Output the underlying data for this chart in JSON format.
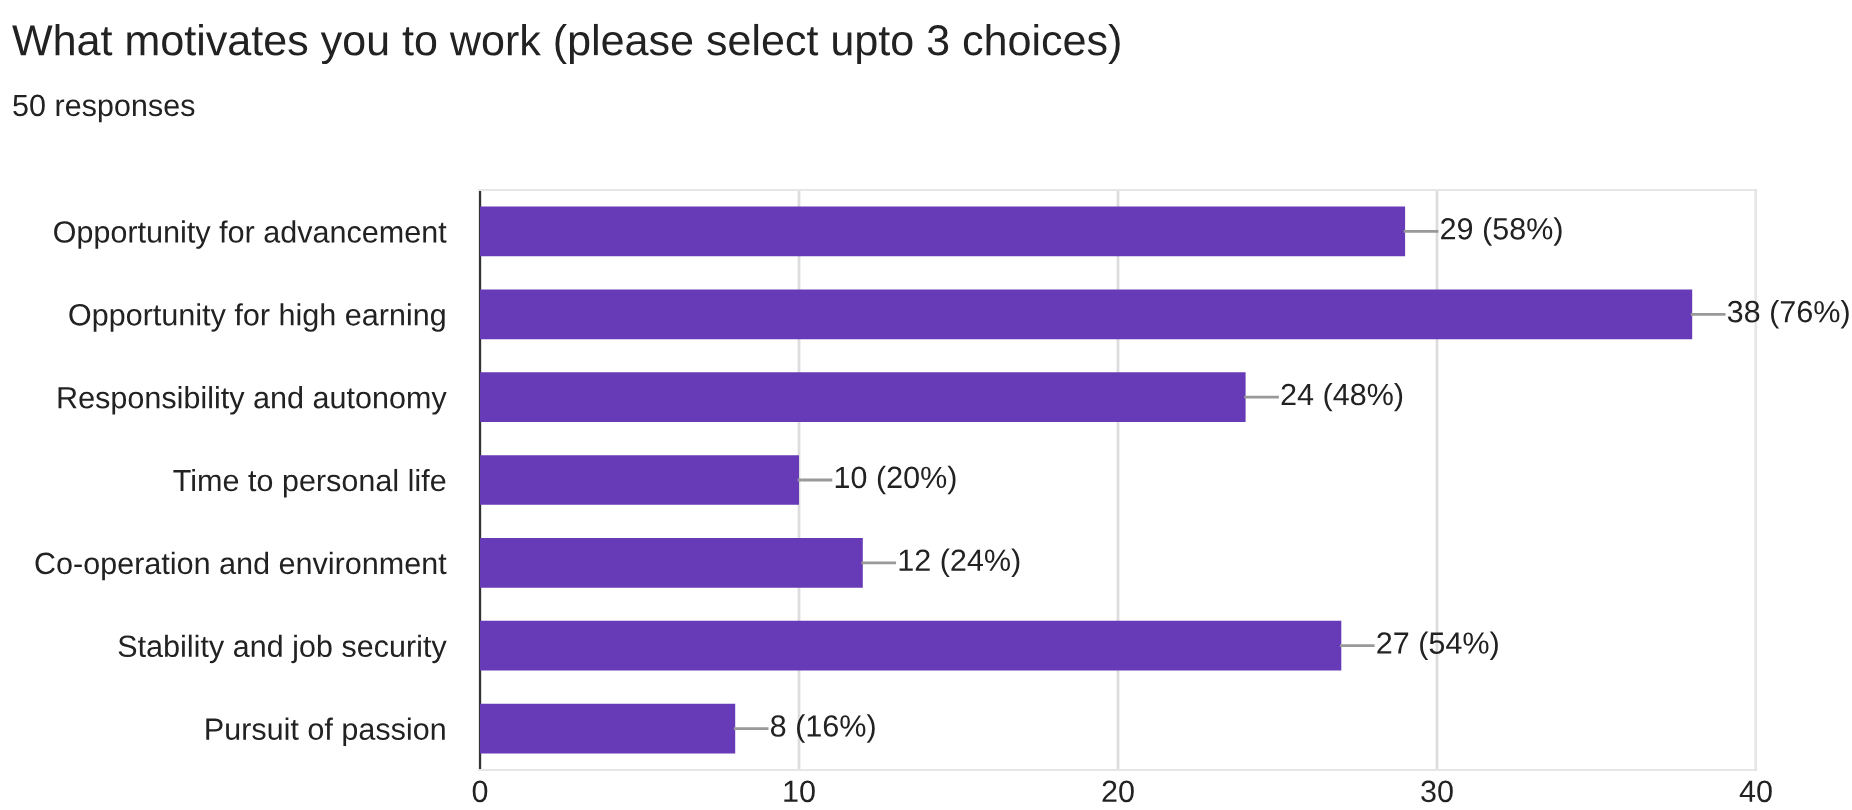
{
  "chart_data": {
    "type": "bar",
    "orientation": "horizontal",
    "title": "What motivates you to work (please select upto 3 choices)",
    "subtitle": "50 responses",
    "categories": [
      "Opportunity for advancement",
      "Opportunity for high earning",
      "Responsibility and autonomy",
      "Time to personal life",
      "Co-operation and environment",
      "Stability and job security",
      "Pursuit of passion"
    ],
    "values": [
      29,
      38,
      24,
      10,
      12,
      27,
      8
    ],
    "value_labels": [
      "29 (58%)",
      "38 (76%)",
      "24 (48%)",
      "10 (20%)",
      "12 (24%)",
      "27 (54%)",
      "8 (16%)"
    ],
    "color": "#673ab7",
    "xlim": [
      0,
      40
    ],
    "xticks": [
      0,
      10,
      20,
      30,
      40
    ],
    "grid": "x"
  }
}
